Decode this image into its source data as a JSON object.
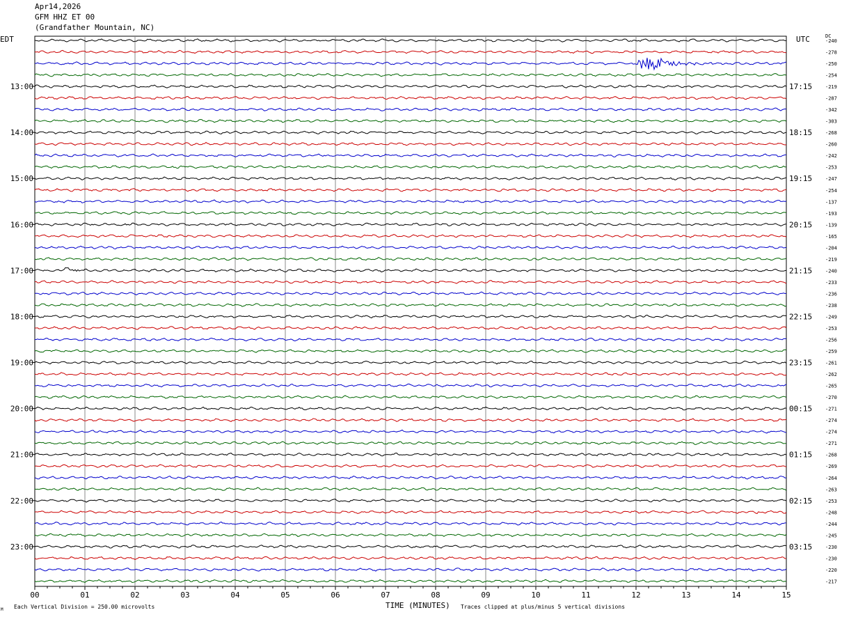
{
  "header": {
    "date": "Apr14,2026",
    "station": "GFM HHZ ET 00",
    "location": "(Grandfather Mountain, NC)"
  },
  "axis": {
    "left_tz": "EDT",
    "right_tz": "UTC",
    "dc_label": "DC",
    "xlabel": "TIME (MINUTES)"
  },
  "footer": {
    "scale_note": "Each Vertical Division =  250.00 microvolts",
    "clip_note": "Traces clipped at plus/minus 5 vertical divisions",
    "corner_mark": "M"
  },
  "colors": {
    "trace_cycle": [
      "#000000",
      "#cc0000",
      "#0000cc",
      "#006600"
    ],
    "grid": "#888888"
  },
  "chart_data": {
    "type": "line",
    "title": "GFM HHZ ET 00",
    "xlabel": "TIME (MINUTES)",
    "xlim": [
      0,
      15
    ],
    "x_ticks": [
      "00",
      "01",
      "02",
      "03",
      "04",
      "05",
      "06",
      "07",
      "08",
      "09",
      "10",
      "11",
      "12",
      "13",
      "14",
      "15"
    ],
    "rows_per_hour": 4,
    "minutes_per_row": 15,
    "left_hour_labels": [
      "13:00",
      "14:00",
      "15:00",
      "16:00",
      "17:00",
      "18:00",
      "19:00",
      "20:00",
      "21:00",
      "22:00",
      "23:00"
    ],
    "right_hour_labels": [
      "17:15",
      "18:15",
      "19:15",
      "20:15",
      "21:15",
      "22:15",
      "23:15",
      "00:15",
      "01:15",
      "02:15",
      "03:15"
    ],
    "first_labeled_row": 4,
    "dc_offsets": [
      -240,
      -278,
      -250,
      -254,
      -219,
      -287,
      -342,
      -303,
      -268,
      -260,
      -242,
      -253,
      -247,
      -254,
      -137,
      -193,
      -139,
      -165,
      -204,
      -219,
      -240,
      -233,
      -236,
      -238,
      -249,
      -253,
      -256,
      -259,
      -261,
      -262,
      -265,
      -270,
      -271,
      -274,
      -274,
      -271,
      -268,
      -269,
      -264,
      -263,
      -253,
      -248,
      -244,
      -245,
      -230,
      -230,
      -220,
      -217
    ],
    "events": [
      {
        "row": 2,
        "start_min": 12.0,
        "end_min": 14.0,
        "amp": 2.2
      },
      {
        "row": 20,
        "start_min": 0.6,
        "end_min": 1.0,
        "amp": 1.1
      },
      {
        "row": 8,
        "start_min": 14.75,
        "end_min": 14.85,
        "amp": 0.8
      },
      {
        "row": 41,
        "start_min": 14.4,
        "end_min": 14.5,
        "amp": 0.9
      }
    ]
  }
}
